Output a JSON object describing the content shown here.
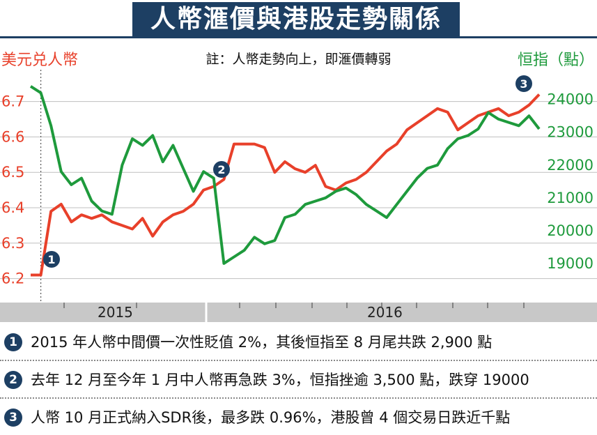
{
  "title": "人幣滙價與港股走勢關係",
  "note": "註：人幣走勢向上，即滙價轉弱",
  "left_axis_title": "美元兑人幣",
  "right_axis_title": "恒指（點）",
  "colors": {
    "cny": "#e8402a",
    "hsi": "#1e9a3c",
    "navy": "#1d3f63",
    "band": "#c8c8c8"
  },
  "years": [
    "2015",
    "2016"
  ],
  "markers": [
    "1",
    "2",
    "3"
  ],
  "footnotes": [
    {
      "num": "1",
      "text": "2015 年人幣中間價一次性貶值 2%，其後恒指至 8 月尾共跌 2,900 點"
    },
    {
      "num": "2",
      "text": "去年 12 月至今年 1 月中人幣再急跌 3%，恒指挫逾 3,500 點，跌穿 19000"
    },
    {
      "num": "3",
      "text": "人幣 10 月正式納入SDR後，最多跌 0.96%，港股曾 4 個交易日跌近千點"
    }
  ],
  "chart_data": {
    "type": "line",
    "x": [
      0,
      2,
      4,
      6,
      8,
      10,
      12,
      14,
      16,
      18,
      20,
      22,
      24,
      26,
      28,
      30,
      32,
      34,
      36,
      38,
      40,
      42,
      44,
      46,
      48,
      50,
      52,
      54,
      56,
      58,
      60,
      62,
      64,
      66,
      68,
      70,
      72,
      74,
      76,
      78,
      80,
      82,
      84,
      86,
      88,
      90,
      92,
      94,
      96,
      98,
      100
    ],
    "left_axis": {
      "ticks": [
        "6.2",
        "6.3",
        "6.4",
        "6.5",
        "6.6",
        "6.7"
      ],
      "ylim": [
        6.15,
        6.78
      ]
    },
    "right_axis": {
      "ticks": [
        "19000",
        "20000",
        "21000",
        "22000",
        "23000",
        "24000"
      ],
      "ylim": [
        18000,
        24800
      ]
    },
    "series": [
      {
        "values": [
          6.21,
          6.21,
          6.39,
          6.41,
          6.36,
          6.38,
          6.37,
          6.38,
          6.36,
          6.35,
          6.34,
          6.37,
          6.32,
          6.36,
          6.38,
          6.39,
          6.41,
          6.45,
          6.46,
          6.48,
          6.58,
          6.58,
          6.58,
          6.57,
          6.5,
          6.53,
          6.51,
          6.5,
          6.52,
          6.46,
          6.45,
          6.47,
          6.48,
          6.5,
          6.53,
          6.56,
          6.58,
          6.62,
          6.64,
          6.66,
          6.68,
          6.67,
          6.62,
          6.64,
          6.66,
          6.67,
          6.68,
          6.66,
          6.67,
          6.69,
          6.72
        ]
      },
      {
        "values": [
          24400,
          24200,
          23200,
          21800,
          21400,
          21600,
          20900,
          20600,
          20500,
          22000,
          22800,
          22600,
          22900,
          22100,
          22600,
          21900,
          21200,
          21800,
          21600,
          19000,
          19200,
          19400,
          19800,
          19600,
          19700,
          20400,
          20500,
          20800,
          20900,
          21000,
          21200,
          21300,
          21100,
          20800,
          20600,
          20400,
          20800,
          21200,
          21600,
          21900,
          22000,
          22500,
          22800,
          22900,
          23100,
          23600,
          23400,
          23300,
          23200,
          23500,
          23100
        ]
      }
    ]
  }
}
